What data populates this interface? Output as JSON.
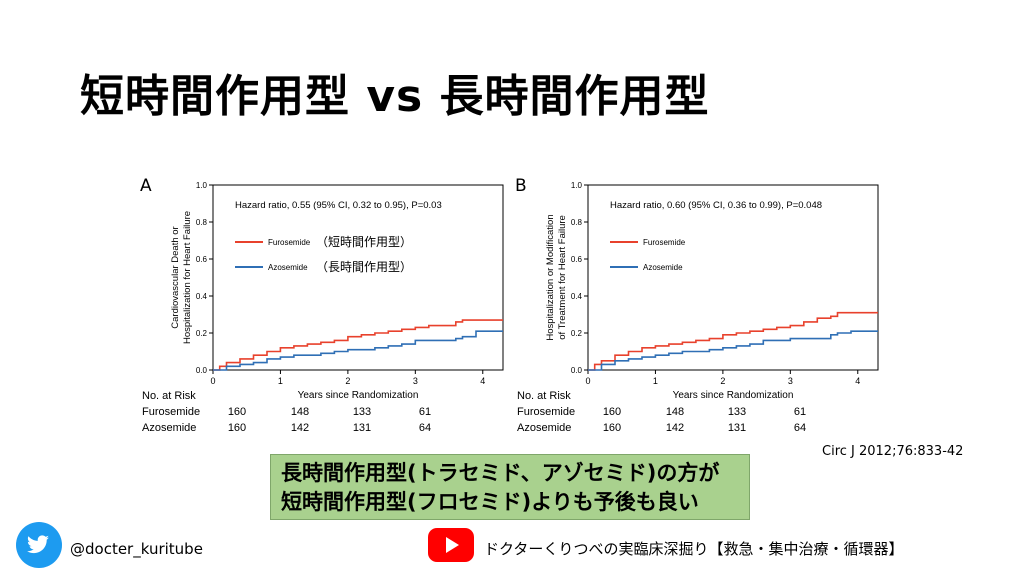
{
  "slide": {
    "title": "短時間作用型 vs 長時間作用型",
    "citation": "Circ J 2012;76:833-42",
    "callout_line1": "長時間作用型(トラセミド、アゾセミド)の方が",
    "callout_line2": "短時間作用型(フロセミド)よりも予後も良い",
    "twitter_handle": "@docter_kuritube",
    "channel_name": "ドクターくりつべの実臨床深掘り【救急・集中治療・循環器】"
  },
  "icons": {
    "twitter": "twitter-bird-icon",
    "youtube": "youtube-play-icon"
  },
  "colors": {
    "furosemide": "#e8412c",
    "azosemide": "#2f6fb5",
    "callout_bg": "#a9d18e",
    "twitter": "#1d9bf0",
    "youtube": "#ff0000"
  },
  "chart_data": [
    {
      "type": "line",
      "panel": "A",
      "annotation": "Hazard ratio, 0.55 (95% CI, 0.32 to 0.95), P=0.03",
      "ylabel_line1": "Cardiovascular Death or",
      "ylabel_line2": "Hospitalization for Heart Failure",
      "xlabel": "Years since Randomization",
      "xlim": [
        0,
        4.3
      ],
      "ylim": [
        0,
        1.0
      ],
      "xticks": [
        "0",
        "1",
        "2",
        "3",
        "4"
      ],
      "yticks": [
        "0.0",
        "0.2",
        "0.4",
        "0.6",
        "0.8",
        "1.0"
      ],
      "series": [
        {
          "name": "Furosemide",
          "legend_note": "（短時間作用型）",
          "color": "#e8412c",
          "x": [
            0,
            0.1,
            0.2,
            0.4,
            0.6,
            0.8,
            1.0,
            1.2,
            1.4,
            1.6,
            1.8,
            2.0,
            2.2,
            2.4,
            2.6,
            2.8,
            3.0,
            3.2,
            3.4,
            3.6,
            3.7,
            4.3
          ],
          "y": [
            0,
            0.02,
            0.04,
            0.06,
            0.08,
            0.1,
            0.12,
            0.13,
            0.14,
            0.15,
            0.16,
            0.18,
            0.19,
            0.2,
            0.21,
            0.22,
            0.23,
            0.24,
            0.24,
            0.26,
            0.27,
            0.27
          ]
        },
        {
          "name": "Azosemide",
          "legend_note": "（長時間作用型）",
          "color": "#2f6fb5",
          "x": [
            0,
            0.2,
            0.4,
            0.6,
            0.8,
            1.0,
            1.2,
            1.4,
            1.6,
            1.8,
            2.0,
            2.2,
            2.4,
            2.6,
            2.8,
            3.0,
            3.2,
            3.4,
            3.6,
            3.7,
            3.9,
            4.3
          ],
          "y": [
            0,
            0.02,
            0.03,
            0.04,
            0.06,
            0.07,
            0.08,
            0.08,
            0.09,
            0.1,
            0.11,
            0.11,
            0.12,
            0.13,
            0.14,
            0.16,
            0.16,
            0.16,
            0.17,
            0.18,
            0.21,
            0.21
          ]
        }
      ],
      "risk_table": {
        "title": "No. at Risk",
        "x": [
          0,
          1,
          2,
          3
        ],
        "rows": [
          {
            "label": "Furosemide",
            "values": [
              "160",
              "148",
              "133",
              "61"
            ]
          },
          {
            "label": "Azosemide",
            "values": [
              "160",
              "142",
              "131",
              "64"
            ]
          }
        ]
      }
    },
    {
      "type": "line",
      "panel": "B",
      "annotation": "Hazard ratio, 0.60 (95% CI, 0.36 to 0.99), P=0.048",
      "ylabel_line1": "Hospitalization or Modification",
      "ylabel_line2": "of Treatment for Heart Failure",
      "xlabel": "Years since Randomization",
      "xlim": [
        0,
        4.3
      ],
      "ylim": [
        0,
        1.0
      ],
      "xticks": [
        "0",
        "1",
        "2",
        "3",
        "4"
      ],
      "yticks": [
        "0.0",
        "0.2",
        "0.4",
        "0.6",
        "0.8",
        "1.0"
      ],
      "series": [
        {
          "name": "Furosemide",
          "legend_note": "",
          "color": "#e8412c",
          "x": [
            0,
            0.1,
            0.2,
            0.4,
            0.6,
            0.8,
            1.0,
            1.2,
            1.4,
            1.6,
            1.8,
            2.0,
            2.2,
            2.4,
            2.6,
            2.8,
            3.0,
            3.2,
            3.4,
            3.6,
            3.7,
            4.3
          ],
          "y": [
            0,
            0.03,
            0.05,
            0.08,
            0.1,
            0.12,
            0.13,
            0.14,
            0.15,
            0.16,
            0.17,
            0.19,
            0.2,
            0.21,
            0.22,
            0.23,
            0.24,
            0.26,
            0.28,
            0.29,
            0.31,
            0.31
          ]
        },
        {
          "name": "Azosemide",
          "legend_note": "",
          "color": "#2f6fb5",
          "x": [
            0,
            0.2,
            0.4,
            0.6,
            0.8,
            1.0,
            1.2,
            1.4,
            1.6,
            1.8,
            2.0,
            2.2,
            2.4,
            2.6,
            2.8,
            3.0,
            3.2,
            3.4,
            3.6,
            3.7,
            3.9,
            4.3
          ],
          "y": [
            0,
            0.03,
            0.05,
            0.06,
            0.07,
            0.08,
            0.09,
            0.1,
            0.1,
            0.11,
            0.12,
            0.13,
            0.14,
            0.16,
            0.16,
            0.17,
            0.17,
            0.17,
            0.19,
            0.2,
            0.21,
            0.21
          ]
        }
      ],
      "risk_table": {
        "title": "No. at Risk",
        "x": [
          0,
          1,
          2,
          3
        ],
        "rows": [
          {
            "label": "Furosemide",
            "values": [
              "160",
              "148",
              "133",
              "61"
            ]
          },
          {
            "label": "Azosemide",
            "values": [
              "160",
              "142",
              "131",
              "64"
            ]
          }
        ]
      }
    }
  ]
}
